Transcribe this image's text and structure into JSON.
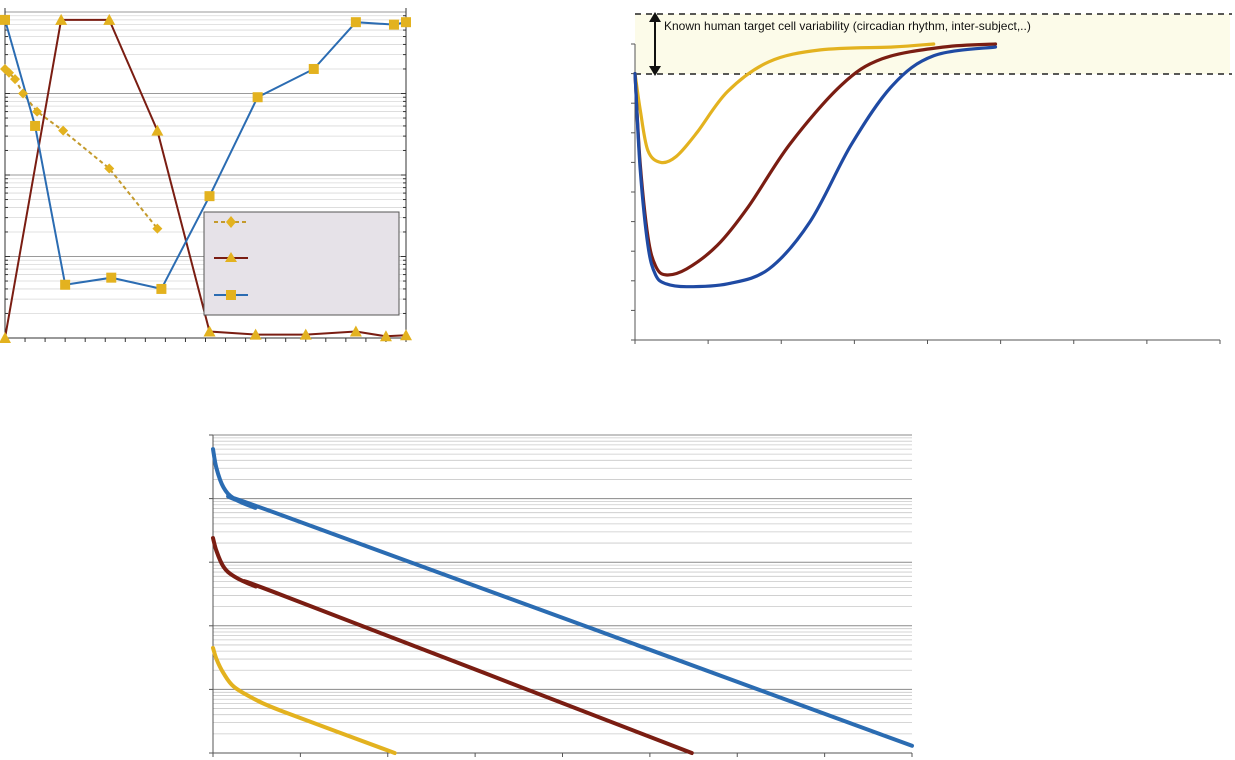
{
  "colors": {
    "yellow": "#e3b21f",
    "red": "#7a1d12",
    "blue": "#2b6cb2",
    "blue_dark": "#1f4aa3",
    "legend_bg": "#e6e2e8",
    "band": "#fcfbe9"
  },
  "chart_data": [
    {
      "panel": "top-left",
      "type": "line",
      "x": [
        0,
        1,
        2,
        3,
        4,
        5,
        6,
        7,
        8,
        9,
        10,
        11,
        12,
        13,
        14,
        15,
        16,
        17,
        18,
        19,
        20
      ],
      "xlim": [
        0,
        20
      ],
      "yscale": "log",
      "ylim": [
        0.01,
        100
      ],
      "grid": true,
      "legend": "bottom-right",
      "series": [
        {
          "style": "dashed",
          "marker": "diamond",
          "color": "#c49a2c",
          "points": [
            [
              0,
              20
            ],
            [
              0.2,
              18
            ],
            [
              0.5,
              15
            ],
            [
              0.9,
              10
            ],
            [
              1.6,
              6
            ],
            [
              2.9,
              3.5
            ],
            [
              5.2,
              1.2
            ],
            [
              7.6,
              0.22
            ]
          ]
        },
        {
          "style": "solid",
          "marker": "triangle",
          "color": "#7a1d12",
          "points": [
            [
              0,
              0.01
            ],
            [
              2.8,
              80
            ],
            [
              5.2,
              80
            ],
            [
              7.6,
              3.5
            ],
            [
              10.2,
              0.012
            ],
            [
              12.5,
              0.011
            ],
            [
              15,
              0.011
            ],
            [
              17.5,
              0.012
            ],
            [
              19,
              0.0105
            ],
            [
              20,
              0.0108
            ]
          ]
        },
        {
          "style": "solid",
          "marker": "square",
          "color": "#2b6cb2",
          "points": [
            [
              0,
              80
            ],
            [
              1.5,
              4
            ],
            [
              3,
              0.045
            ],
            [
              5.3,
              0.055
            ],
            [
              7.8,
              0.04
            ],
            [
              10.2,
              0.55
            ],
            [
              12.6,
              9
            ],
            [
              15.4,
              20
            ],
            [
              17.5,
              75
            ],
            [
              19.4,
              70
            ],
            [
              20,
              75
            ]
          ]
        }
      ]
    },
    {
      "panel": "top-right",
      "type": "line",
      "title": "Known human target cell variability (circadian rhythm, inter-subject,..)",
      "xlim": [
        0,
        100
      ],
      "ylim": [
        0,
        100
      ],
      "grid": false,
      "legend": "none",
      "series": [
        {
          "color": "#e3b21f",
          "points": [
            [
              0,
              90
            ],
            [
              1,
              78
            ],
            [
              2.5,
              64
            ],
            [
              5,
              60
            ],
            [
              8,
              62
            ],
            [
              12,
              70
            ],
            [
              18,
              84
            ],
            [
              26,
              94
            ],
            [
              36,
              98
            ],
            [
              50,
              99
            ],
            [
              58,
              100
            ]
          ]
        },
        {
          "color": "#7a1d12",
          "points": [
            [
              0,
              90
            ],
            [
              1,
              60
            ],
            [
              2.5,
              35
            ],
            [
              4,
              25
            ],
            [
              6,
              22
            ],
            [
              10,
              24
            ],
            [
              16,
              32
            ],
            [
              22,
              45
            ],
            [
              30,
              66
            ],
            [
              40,
              86
            ],
            [
              48,
              95
            ],
            [
              60,
              99
            ],
            [
              70,
              100
            ]
          ]
        },
        {
          "color": "#1f4aa3",
          "points": [
            [
              0,
              90
            ],
            [
              1,
              58
            ],
            [
              2.5,
              32
            ],
            [
              4,
              22
            ],
            [
              6,
              19
            ],
            [
              10,
              18
            ],
            [
              18,
              19
            ],
            [
              26,
              24
            ],
            [
              34,
              40
            ],
            [
              42,
              66
            ],
            [
              50,
              86
            ],
            [
              58,
              96
            ],
            [
              70,
              99
            ]
          ]
        }
      ]
    },
    {
      "panel": "bottom",
      "type": "line",
      "yscale": "log",
      "xlim": [
        0,
        100
      ],
      "ylim": [
        1,
        100000
      ],
      "grid": true,
      "legend": "none",
      "series": [
        {
          "color": "#2b6cb2",
          "points": [
            [
              0,
              60000
            ],
            [
              0.5,
              30000
            ],
            [
              1.5,
              15000
            ],
            [
              3,
              10000
            ],
            [
              6,
              7200
            ],
            [
              10,
              5400
            ],
            [
              100,
              1.3
            ]
          ]
        },
        {
          "color": "#7a1d12",
          "points": [
            [
              0,
              2400
            ],
            [
              0.5,
              1500
            ],
            [
              1.5,
              850
            ],
            [
              3,
              600
            ],
            [
              6,
              420
            ],
            [
              10,
              300
            ],
            [
              68.5,
              1
            ]
          ]
        },
        {
          "color": "#e3b21f",
          "points": [
            [
              0,
              45
            ],
            [
              0.5,
              30
            ],
            [
              1.5,
              18
            ],
            [
              3,
              11
            ],
            [
              6,
              7
            ],
            [
              10,
              4.5
            ],
            [
              26,
              1
            ]
          ]
        }
      ]
    }
  ]
}
